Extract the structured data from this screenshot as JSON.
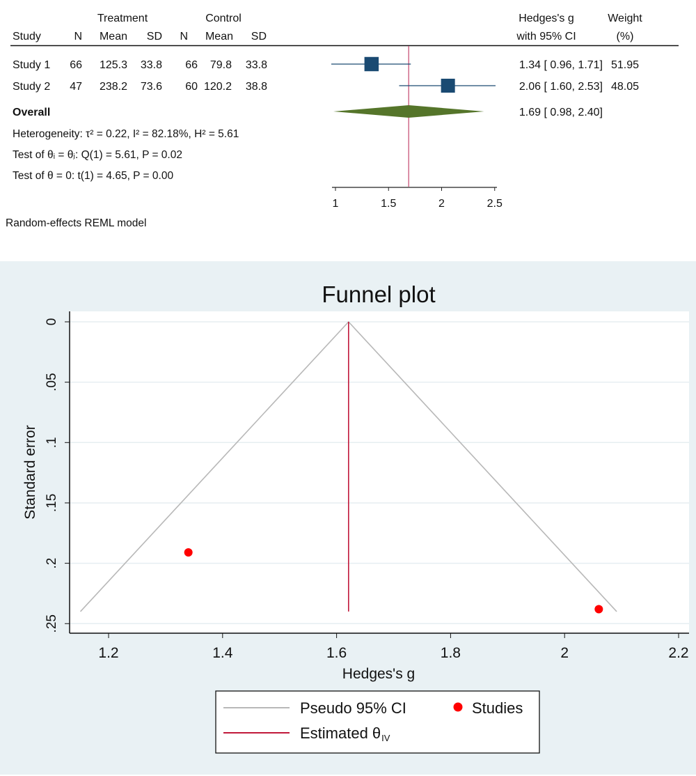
{
  "chart_data": [
    {
      "type": "forest",
      "columns": {
        "group_headers": [
          "Treatment",
          "Control"
        ],
        "headers": [
          "Study",
          "N",
          "Mean",
          "SD",
          "N",
          "Mean",
          "SD"
        ],
        "effect_header": [
          "Hedges's g",
          "with 95% CI"
        ],
        "weight_header": [
          "Weight",
          "(%)"
        ]
      },
      "studies": [
        {
          "label": "Study 1",
          "t_n": "66",
          "t_mean": "125.3",
          "t_sd": "33.8",
          "c_n": "66",
          "c_mean": "79.8",
          "c_sd": "33.8",
          "g": 1.34,
          "lo": 0.96,
          "hi": 1.71,
          "ci_text": "1.34 [ 0.96,  1.71]",
          "weight": 51.95,
          "weight_text": "51.95"
        },
        {
          "label": "Study 2",
          "t_n": "47",
          "t_mean": "238.2",
          "t_sd": "73.6",
          "c_n": "60",
          "c_mean": "120.2",
          "c_sd": "38.8",
          "g": 2.06,
          "lo": 1.6,
          "hi": 2.53,
          "ci_text": "2.06 [ 1.60,  2.53]",
          "weight": 48.05,
          "weight_text": "48.05"
        }
      ],
      "overall": {
        "label": "Overall",
        "g": 1.69,
        "lo": 0.98,
        "hi": 2.4,
        "ci_text": "1.69 [ 0.98,  2.40]"
      },
      "stats": [
        "Heterogeneity: τ² = 0.22, I² = 82.18%, H² = 5.61",
        "Test of θᵢ = θⱼ: Q(1) = 5.61, P = 0.02",
        "Test of θ = 0: t(1) = 4.65, P = 0.00"
      ],
      "xticks": [
        "1",
        "1.5",
        "2",
        "2.5"
      ],
      "xlim": [
        1,
        2.5
      ],
      "footnote": "Random-effects REML model",
      "colors": {
        "square": "#1a4a72",
        "diamond": "#55752a",
        "reference_line": "#d06a8a"
      }
    },
    {
      "type": "scatter",
      "title": "Funnel plot",
      "xlabel": "Hedges's g",
      "ylabel": "Standard error",
      "xlim": [
        1.2,
        2.2
      ],
      "ylim": [
        0,
        0.25
      ],
      "y_reversed": true,
      "xticks": [
        "1.2",
        "1.4",
        "1.6",
        "1.8",
        "2",
        "2.2"
      ],
      "yticks": [
        "0",
        ".05",
        ".1",
        ".15",
        ".2",
        ".25"
      ],
      "grid": true,
      "points": [
        {
          "x": 1.34,
          "y": 0.191
        },
        {
          "x": 2.06,
          "y": 0.238
        }
      ],
      "estimate": 1.621,
      "funnel_max_se": 0.24,
      "legend": {
        "placement": "bottom",
        "entries": [
          "Pseudo 95% CI",
          "Studies",
          "Estimated θ",
          "IV"
        ]
      },
      "colors": {
        "points": "#ff0000",
        "funnel": "#b8b8b8",
        "estimate": "#c0183a",
        "title": "#1a2a55",
        "background": "#e9f1f4"
      }
    }
  ]
}
